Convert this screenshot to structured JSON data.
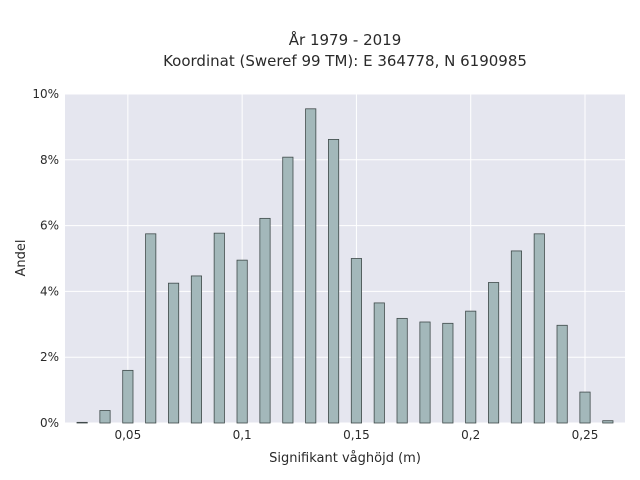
{
  "chart_data": {
    "type": "bar",
    "title_line1": "År 1979 - 2019",
    "title_line2": "Koordinat (Sweref 99 TM): E 364778, N 6190985",
    "xlabel": "Signifikant våghöjd (m)",
    "ylabel": "Andel",
    "xlim": [
      0.0225,
      0.2675
    ],
    "ylim": [
      0,
      10
    ],
    "x_ticks": [
      {
        "value": 0.05,
        "label": "0,05"
      },
      {
        "value": 0.1,
        "label": "0,1"
      },
      {
        "value": 0.15,
        "label": "0,15"
      },
      {
        "value": 0.2,
        "label": "0,2"
      },
      {
        "value": 0.25,
        "label": "0,25"
      }
    ],
    "y_ticks": [
      {
        "value": 0,
        "label": "0%"
      },
      {
        "value": 2,
        "label": "2%"
      },
      {
        "value": 4,
        "label": "4%"
      },
      {
        "value": 6,
        "label": "6%"
      },
      {
        "value": 8,
        "label": "8%"
      },
      {
        "value": 10,
        "label": "10%"
      }
    ],
    "bar_width": 0.0045,
    "x": [
      0.03,
      0.04,
      0.05,
      0.06,
      0.07,
      0.08,
      0.09,
      0.1,
      0.11,
      0.12,
      0.13,
      0.14,
      0.15,
      0.16,
      0.17,
      0.18,
      0.19,
      0.2,
      0.21,
      0.22,
      0.23,
      0.24,
      0.25,
      0.26
    ],
    "values": [
      0.02,
      0.38,
      1.6,
      5.75,
      4.25,
      4.47,
      5.77,
      4.95,
      6.22,
      8.08,
      9.55,
      8.62,
      5.0,
      3.65,
      3.18,
      3.07,
      3.03,
      3.4,
      4.27,
      5.23,
      5.75,
      2.97,
      0.94,
      0.07
    ],
    "colors": {
      "plot_background": "#e5e6ef",
      "grid": "#ffffff",
      "bar_fill": "#a3b8ba",
      "bar_edge": "#3f4a4a"
    },
    "grid": true
  }
}
